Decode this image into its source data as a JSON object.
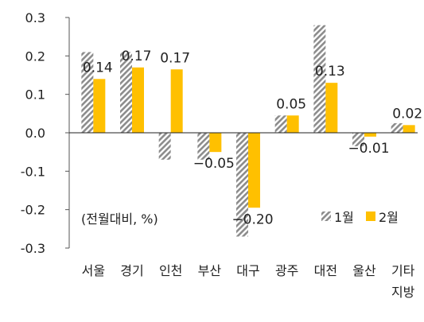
{
  "chart_data": {
    "type": "bar",
    "categories": [
      [
        "서울"
      ],
      [
        "경기"
      ],
      [
        "인천"
      ],
      [
        "부산"
      ],
      [
        "대구"
      ],
      [
        "광주"
      ],
      [
        "대전"
      ],
      [
        "울산"
      ],
      [
        "기타",
        "지방"
      ]
    ],
    "series": [
      {
        "name": "1월",
        "values": [
          0.21,
          0.21,
          -0.07,
          -0.07,
          -0.27,
          0.045,
          0.28,
          -0.035,
          0.025
        ],
        "pattern": "hatch",
        "color": "#8c8c8c"
      },
      {
        "name": "2월",
        "values": [
          0.14,
          0.17,
          0.165,
          -0.05,
          -0.195,
          0.045,
          0.13,
          -0.01,
          0.02
        ],
        "color": "#FFC000"
      }
    ],
    "data_labels": [
      "0.14",
      "0.17",
      "0.17",
      "−0.05",
      "−0.20",
      "0.05",
      "0.13",
      "−0.01",
      "0.02"
    ],
    "ylim": [
      -0.3,
      0.3
    ],
    "yticks": [
      0.3,
      0.2,
      0.1,
      0.0,
      -0.1,
      -0.2,
      -0.3
    ],
    "ytick_labels": [
      "0.3",
      "0.2",
      "0.1",
      "0.0",
      "-0.1",
      "-0.2",
      "-0.3"
    ],
    "unit_note": "(전월대비, %)",
    "legend_position": "bottom-right",
    "grid": false,
    "title": "",
    "xlabel": "",
    "ylabel": ""
  }
}
